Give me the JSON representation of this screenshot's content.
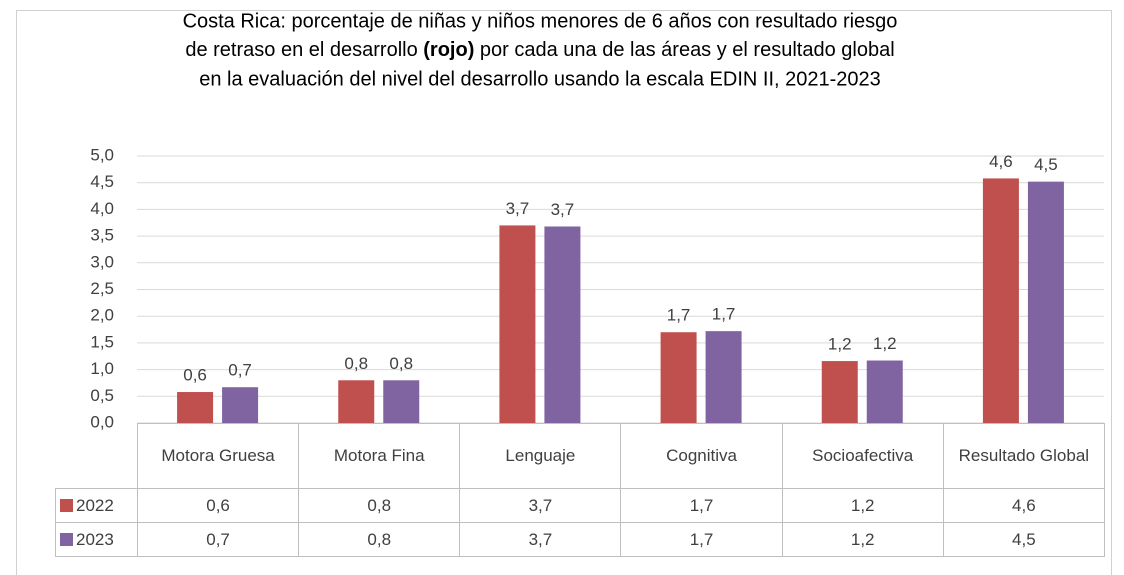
{
  "chart_data": {
    "type": "bar",
    "title": [
      "Costa Rica: porcentaje de niñas y niños menores de 6 años con resultado riesgo",
      "de retraso en el desarrollo ",
      "(rojo)",
      " por cada una de las áreas y el resultado global",
      "en la evaluación del nivel del desarrollo usando la escala EDIN II, 2021-2023"
    ],
    "categories": [
      "Motora Gruesa",
      "Motora Fina",
      "Lenguaje",
      "Cognitiva",
      "Socioafectiva",
      "Resultado Global"
    ],
    "series": [
      {
        "name": "2022",
        "color": "#c0504d",
        "values": [
          0.58,
          0.8,
          3.7,
          1.7,
          1.16,
          4.58
        ],
        "value_labels": [
          "0,6",
          "0,8",
          "3,7",
          "1,7",
          "1,2",
          "4,6"
        ]
      },
      {
        "name": "2023",
        "color": "#8064a2",
        "values": [
          0.67,
          0.8,
          3.68,
          1.72,
          1.17,
          4.52
        ],
        "value_labels": [
          "0,7",
          "0,8",
          "3,7",
          "1,7",
          "1,2",
          "4,5"
        ]
      }
    ],
    "ylim": [
      0,
      5
    ],
    "yticks": [
      {
        "value": 0,
        "label": "0,0"
      },
      {
        "value": 0.5,
        "label": "0,5"
      },
      {
        "value": 1,
        "label": "1,0"
      },
      {
        "value": 1.5,
        "label": "1,5"
      },
      {
        "value": 2,
        "label": "2,0"
      },
      {
        "value": 2.5,
        "label": "2,5"
      },
      {
        "value": 3,
        "label": "3,0"
      },
      {
        "value": 3.5,
        "label": "3,5"
      },
      {
        "value": 4,
        "label": "4,0"
      },
      {
        "value": 4.5,
        "label": "4,5"
      },
      {
        "value": 5,
        "label": "5,0"
      }
    ],
    "grid": true
  }
}
